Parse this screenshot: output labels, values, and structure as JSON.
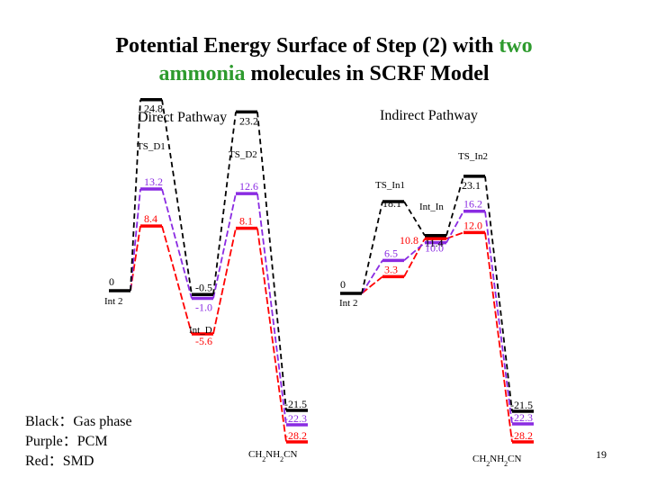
{
  "slide": {
    "title_parts": [
      {
        "text": "Potential Energy Surface of Step (2) with ",
        "highlight": false
      },
      {
        "text": "two",
        "highlight": true
      },
      {
        "text": " ",
        "highlight": false
      },
      {
        "text": "ammonia",
        "highlight": true
      },
      {
        "text": " molecules in SCRF Model",
        "highlight": false
      }
    ],
    "page_number": "19"
  },
  "colors": {
    "gas_phase": "#000000",
    "pcm": "#8a2be2",
    "smd": "#ff0000",
    "title_highlight": "#2e9b2e"
  },
  "legend": [
    {
      "label": "Black：Gas phase"
    },
    {
      "label": "Purple：PCM"
    },
    {
      "label": "Red：SMD"
    }
  ],
  "panels": [
    {
      "title": "Direct Pathway",
      "states": [
        {
          "name": "Int 2",
          "energies": {
            "gas": "0"
          }
        },
        {
          "name": "TS_D1",
          "energies": {
            "gas": "24.8",
            "pcm": "13.2",
            "smd": "8.4"
          }
        },
        {
          "name": "Int_D",
          "energies": {
            "gas": "-0.5",
            "pcm": "-1.0",
            "smd": "-5.6"
          }
        },
        {
          "name": "TS_D2",
          "energies": {
            "gas": "23.2",
            "pcm": "12.6",
            "smd": "8.1"
          }
        },
        {
          "name": "CH2NH2CN",
          "energies": {
            "gas": "-21.5",
            "pcm": "-22.3",
            "smd": "-28.2"
          }
        }
      ]
    },
    {
      "title": "Indirect Pathway",
      "states": [
        {
          "name": "Int 2",
          "energies": {
            "gas": "0"
          }
        },
        {
          "name": "TS_In1",
          "energies": {
            "gas": "18.1",
            "pcm": "6.5",
            "smd": "3.3"
          }
        },
        {
          "name": "Int_In",
          "energies": {
            "gas": "11.4",
            "pcm": "10.0",
            "smd": "10.8"
          }
        },
        {
          "name": "TS_In2",
          "energies": {
            "gas": "23.1",
            "pcm": "16.2",
            "smd": "12.0"
          }
        },
        {
          "name": "CH2NH2CN",
          "energies": {
            "gas": "-21.5",
            "pcm": "-22.3",
            "smd": "-28.2"
          }
        }
      ]
    }
  ]
}
